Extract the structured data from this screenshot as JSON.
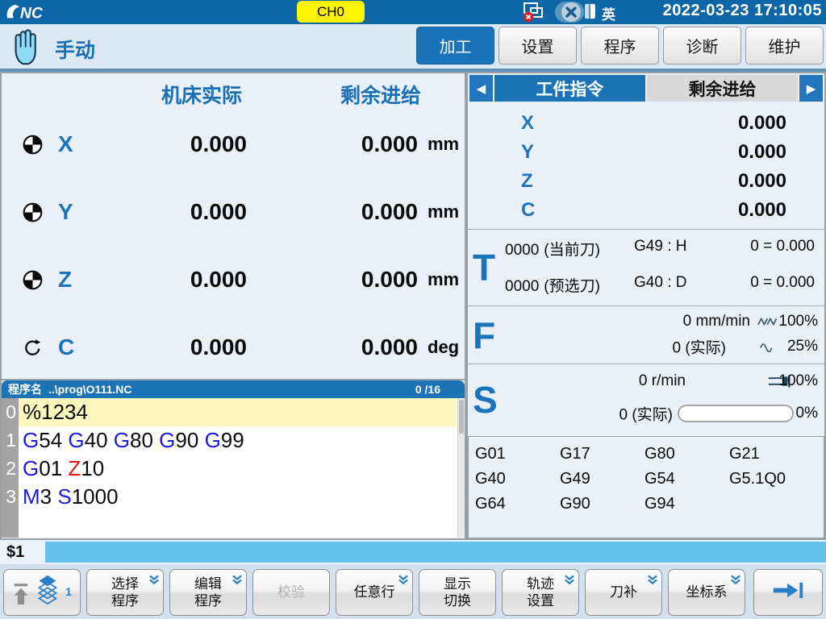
{
  "colors": {
    "topbar_blue": "#0d67a6",
    "accent_blue": "#1b74ba",
    "highlight_yellow": "#fbf7bc",
    "cyan_bar": "#67c3ed",
    "panel_bg": "#e9f0f8",
    "gcode_blue": "#1a1ae0",
    "gcode_red": "#e01212"
  },
  "top_bar": {
    "channel_badge": "CH0",
    "language": "英",
    "datetime": "2022-03-23 17:10:05"
  },
  "header": {
    "mode_label": "手动",
    "tabs": [
      {
        "name": "machining",
        "label": "加工",
        "active": true
      },
      {
        "name": "settings",
        "label": "设置",
        "active": false
      },
      {
        "name": "program",
        "label": "程序",
        "active": false
      },
      {
        "name": "diagnosis",
        "label": "诊断",
        "active": false
      },
      {
        "name": "maintenance",
        "label": "维护",
        "active": false
      }
    ]
  },
  "coords": {
    "headers": [
      "机床实际",
      "剩余进给"
    ],
    "axes": [
      {
        "name": "X",
        "icon": "datum",
        "actual": "0.000",
        "remain": "0.000",
        "unit": "mm"
      },
      {
        "name": "Y",
        "icon": "datum",
        "actual": "0.000",
        "remain": "0.000",
        "unit": "mm"
      },
      {
        "name": "Z",
        "icon": "datum",
        "actual": "0.000",
        "remain": "0.000",
        "unit": "mm"
      },
      {
        "name": "C",
        "icon": "rotate",
        "actual": "0.000",
        "remain": "0.000",
        "unit": "deg"
      }
    ]
  },
  "program": {
    "title_label": "程序名",
    "path": "..\\prog\\O111.NC",
    "position": "0 /16",
    "lines": [
      {
        "no": "0",
        "highlight": true,
        "tokens": [
          {
            "text": "%1234",
            "color": "k"
          }
        ]
      },
      {
        "no": "1",
        "highlight": false,
        "tokens": [
          {
            "text": "G",
            "color": "b"
          },
          {
            "text": "54 ",
            "color": "k"
          },
          {
            "text": "G",
            "color": "b"
          },
          {
            "text": "40 ",
            "color": "k"
          },
          {
            "text": "G",
            "color": "b"
          },
          {
            "text": "80 ",
            "color": "k"
          },
          {
            "text": "G",
            "color": "b"
          },
          {
            "text": "90 ",
            "color": "k"
          },
          {
            "text": "G",
            "color": "b"
          },
          {
            "text": "99",
            "color": "k"
          }
        ]
      },
      {
        "no": "2",
        "highlight": false,
        "tokens": [
          {
            "text": "G",
            "color": "b"
          },
          {
            "text": "01 ",
            "color": "k"
          },
          {
            "text": "Z",
            "color": "r"
          },
          {
            "text": "10",
            "color": "k"
          }
        ]
      },
      {
        "no": "3",
        "highlight": false,
        "tokens": [
          {
            "text": "M",
            "color": "b"
          },
          {
            "text": "3 ",
            "color": "k"
          },
          {
            "text": "S",
            "color": "b"
          },
          {
            "text": "1000",
            "color": "k"
          }
        ]
      }
    ]
  },
  "right_panel": {
    "tabs": [
      {
        "name": "workpiece-command",
        "label": "工件指令",
        "active": true
      },
      {
        "name": "remaining-feed",
        "label": "剩余进给",
        "active": false
      }
    ],
    "axes": [
      {
        "name": "X",
        "value": "0.000"
      },
      {
        "name": "Y",
        "value": "0.000"
      },
      {
        "name": "Z",
        "value": "0.000"
      },
      {
        "name": "C",
        "value": "0.000"
      }
    ],
    "tool": {
      "letter": "T",
      "rows": [
        {
          "number": "0000",
          "label": "(当前刀)",
          "comp": "G49 : H",
          "value": "0 = 0.000"
        },
        {
          "number": "0000",
          "label": "(预选刀)",
          "comp": "G40 : D",
          "value": "0 = 0.000"
        }
      ]
    },
    "feed": {
      "letter": "F",
      "rows": [
        {
          "text": "0 mm/min",
          "icon": "zigzag",
          "percent": "100%"
        },
        {
          "text": "0 (实际)",
          "icon": "sine",
          "percent": "25%"
        }
      ]
    },
    "spindle": {
      "letter": "S",
      "rows": [
        {
          "text": "0 r/min",
          "icon": "spindle",
          "percent": "100%"
        },
        {
          "text": "0 (实际)",
          "icon": "bar",
          "percent": "0%",
          "bar_fill": 0
        }
      ]
    },
    "gcodes": [
      [
        "G01",
        "G17",
        "G80",
        "G21"
      ],
      [
        "G40",
        "G49",
        "G54",
        "G5.1Q0"
      ],
      [
        "G64",
        "G90",
        "G94",
        ""
      ]
    ]
  },
  "status_bar": {
    "channel": "$1"
  },
  "softkeys": [
    {
      "name": "menu-level",
      "type": "icon",
      "badge": "1"
    },
    {
      "name": "select-program",
      "lines": [
        "选择",
        "程序"
      ],
      "chevron": true,
      "disabled": false
    },
    {
      "name": "edit-program",
      "lines": [
        "编辑",
        "程序"
      ],
      "chevron": true,
      "disabled": false
    },
    {
      "name": "verify",
      "lines": [
        "校验"
      ],
      "chevron": false,
      "disabled": true
    },
    {
      "name": "arbitrary-line",
      "lines": [
        "任意行"
      ],
      "chevron": true,
      "disabled": false
    },
    {
      "name": "display-switch",
      "lines": [
        "显示",
        "切换"
      ],
      "chevron": false,
      "disabled": false
    },
    {
      "name": "trajectory-settings",
      "lines": [
        "轨迹",
        "设置"
      ],
      "chevron": true,
      "disabled": false
    },
    {
      "name": "tool-comp",
      "lines": [
        "刀补"
      ],
      "chevron": true,
      "disabled": false
    },
    {
      "name": "coordinate-system",
      "lines": [
        "坐标系"
      ],
      "chevron": true,
      "disabled": false
    },
    {
      "name": "next-page",
      "type": "next"
    }
  ]
}
